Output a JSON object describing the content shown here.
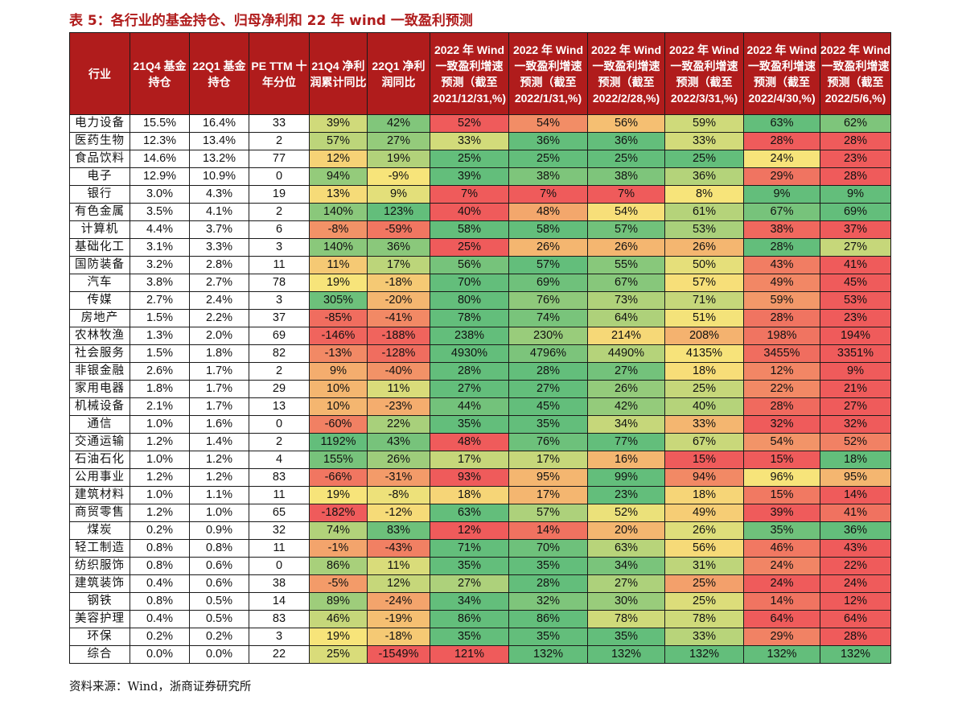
{
  "title": "表 5：各行业的基金持仓、归母净利和 22 年 wind 一致盈利预测",
  "source": "资料来源：Wind，浙商证券研究所",
  "palette": {
    "header_bg": "#b01c1c",
    "scale_low": "#ef5b5b",
    "scale_mid": "#f7e47a",
    "scale_high": "#63be7b"
  },
  "columns": [
    "行业",
    "21Q4 基金持仓",
    "22Q1 基金持仓",
    "PE TTM 十年分位",
    "21Q4 净利润累计同比",
    "22Q1 净利润同比",
    "2022 年 Wind 一致盈利增速预测（截至 2021/12/31,%)",
    "2022 年 Wind 一致盈利增速预测（截至 2022/1/31,%)",
    "2022 年 Wind 一致盈利增速预测（截至 2022/2/28,%)",
    "2022 年 Wind 一致盈利增速预测（截至 2022/3/31,%)",
    "2022 年 Wind 一致盈利增速预测（截至 2022/4/30,%)",
    "2022 年 Wind 一致盈利增速预测（截至 2022/5/6,%)"
  ],
  "rows": [
    [
      "电力设备",
      "15.5%",
      "16.4%",
      "33",
      "39%",
      "42%",
      "52%",
      "54%",
      "56%",
      "59%",
      "63%",
      "62%"
    ],
    [
      "医药生物",
      "12.3%",
      "13.4%",
      "2",
      "57%",
      "27%",
      "33%",
      "36%",
      "36%",
      "33%",
      "28%",
      "28%"
    ],
    [
      "食品饮料",
      "14.6%",
      "13.2%",
      "77",
      "12%",
      "19%",
      "25%",
      "25%",
      "25%",
      "25%",
      "24%",
      "23%"
    ],
    [
      "电子",
      "12.9%",
      "10.9%",
      "0",
      "94%",
      "-9%",
      "39%",
      "38%",
      "38%",
      "36%",
      "29%",
      "28%"
    ],
    [
      "银行",
      "3.0%",
      "4.3%",
      "19",
      "13%",
      "9%",
      "7%",
      "7%",
      "7%",
      "8%",
      "9%",
      "9%"
    ],
    [
      "有色金属",
      "3.5%",
      "4.1%",
      "2",
      "140%",
      "123%",
      "40%",
      "48%",
      "54%",
      "61%",
      "67%",
      "69%"
    ],
    [
      "计算机",
      "4.4%",
      "3.7%",
      "6",
      "-8%",
      "-59%",
      "58%",
      "58%",
      "57%",
      "53%",
      "38%",
      "37%"
    ],
    [
      "基础化工",
      "3.1%",
      "3.3%",
      "3",
      "140%",
      "36%",
      "25%",
      "26%",
      "26%",
      "26%",
      "28%",
      "27%"
    ],
    [
      "国防装备",
      "3.2%",
      "2.8%",
      "11",
      "11%",
      "17%",
      "56%",
      "57%",
      "55%",
      "50%",
      "43%",
      "41%"
    ],
    [
      "汽车",
      "3.8%",
      "2.7%",
      "78",
      "19%",
      "-18%",
      "70%",
      "69%",
      "67%",
      "57%",
      "49%",
      "45%"
    ],
    [
      "传媒",
      "2.7%",
      "2.4%",
      "3",
      "305%",
      "-20%",
      "80%",
      "76%",
      "73%",
      "71%",
      "59%",
      "53%"
    ],
    [
      "房地产",
      "1.5%",
      "2.2%",
      "37",
      "-85%",
      "-41%",
      "78%",
      "74%",
      "64%",
      "51%",
      "28%",
      "23%"
    ],
    [
      "农林牧渔",
      "1.3%",
      "2.0%",
      "69",
      "-146%",
      "-188%",
      "238%",
      "230%",
      "214%",
      "208%",
      "198%",
      "194%"
    ],
    [
      "社会服务",
      "1.5%",
      "1.8%",
      "82",
      "-13%",
      "-128%",
      "4930%",
      "4796%",
      "4490%",
      "4135%",
      "3455%",
      "3351%"
    ],
    [
      "非银金融",
      "2.6%",
      "1.7%",
      "2",
      "9%",
      "-40%",
      "28%",
      "28%",
      "27%",
      "18%",
      "12%",
      "9%"
    ],
    [
      "家用电器",
      "1.8%",
      "1.7%",
      "29",
      "10%",
      "11%",
      "27%",
      "27%",
      "26%",
      "25%",
      "22%",
      "21%"
    ],
    [
      "机械设备",
      "2.1%",
      "1.7%",
      "13",
      "10%",
      "-23%",
      "44%",
      "45%",
      "42%",
      "40%",
      "28%",
      "27%"
    ],
    [
      "通信",
      "1.0%",
      "1.6%",
      "0",
      "-60%",
      "22%",
      "35%",
      "35%",
      "34%",
      "33%",
      "32%",
      "32%"
    ],
    [
      "交通运输",
      "1.2%",
      "1.4%",
      "2",
      "1192%",
      "43%",
      "48%",
      "76%",
      "77%",
      "67%",
      "54%",
      "52%"
    ],
    [
      "石油石化",
      "1.0%",
      "1.2%",
      "4",
      "155%",
      "26%",
      "17%",
      "17%",
      "16%",
      "15%",
      "15%",
      "18%"
    ],
    [
      "公用事业",
      "1.2%",
      "1.2%",
      "83",
      "-66%",
      "-31%",
      "93%",
      "95%",
      "99%",
      "94%",
      "96%",
      "95%"
    ],
    [
      "建筑材料",
      "1.0%",
      "1.1%",
      "11",
      "19%",
      "-8%",
      "18%",
      "17%",
      "23%",
      "18%",
      "15%",
      "14%"
    ],
    [
      "商贸零售",
      "1.2%",
      "1.0%",
      "65",
      "-182%",
      "-12%",
      "63%",
      "57%",
      "52%",
      "49%",
      "39%",
      "41%"
    ],
    [
      "煤炭",
      "0.2%",
      "0.9%",
      "32",
      "74%",
      "83%",
      "12%",
      "14%",
      "20%",
      "26%",
      "35%",
      "36%"
    ],
    [
      "轻工制造",
      "0.8%",
      "0.8%",
      "11",
      "-1%",
      "-43%",
      "71%",
      "70%",
      "63%",
      "56%",
      "46%",
      "43%"
    ],
    [
      "纺织服饰",
      "0.8%",
      "0.6%",
      "0",
      "86%",
      "11%",
      "35%",
      "35%",
      "34%",
      "31%",
      "24%",
      "22%"
    ],
    [
      "建筑装饰",
      "0.4%",
      "0.6%",
      "38",
      "-5%",
      "12%",
      "27%",
      "28%",
      "27%",
      "25%",
      "24%",
      "24%"
    ],
    [
      "钢铁",
      "0.8%",
      "0.5%",
      "14",
      "89%",
      "-24%",
      "34%",
      "32%",
      "30%",
      "25%",
      "14%",
      "12%"
    ],
    [
      "美容护理",
      "0.4%",
      "0.5%",
      "83",
      "46%",
      "-19%",
      "86%",
      "86%",
      "78%",
      "78%",
      "64%",
      "64%"
    ],
    [
      "环保",
      "0.2%",
      "0.2%",
      "3",
      "19%",
      "-18%",
      "35%",
      "35%",
      "35%",
      "33%",
      "29%",
      "28%"
    ],
    [
      "综合",
      "0.0%",
      "0.0%",
      "22",
      "25%",
      "-1549%",
      "121%",
      "132%",
      "132%",
      "132%",
      "132%",
      "132%"
    ]
  ]
}
